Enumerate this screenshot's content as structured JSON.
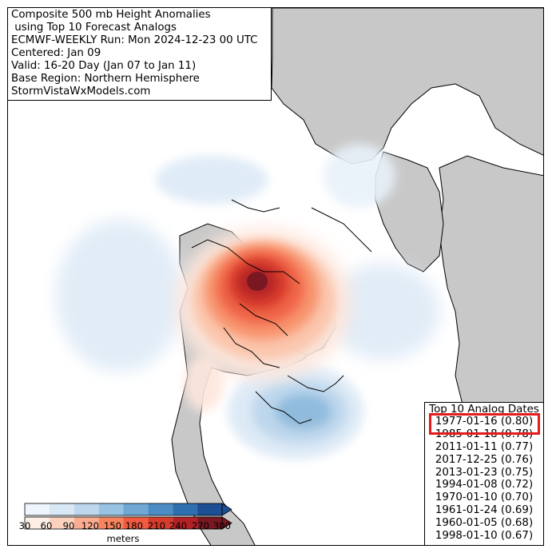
{
  "title_lines": [
    "Composite 500 mb Height Anomalies",
    " using Top 10 Forecast Analogs",
    "ECMWF-WEEKLY Run: Mon 2024-12-23 00 UTC",
    "Centered: Jan 09",
    "Valid: 16-20 Day (Jan 07 to Jan 11)",
    "Base Region: Northern Hemisphere",
    "StormVistaWxModels.com"
  ],
  "analogs": {
    "title": "Top 10 Analog Dates",
    "items": [
      "1977-01-16 (0.80)",
      "1985-01-18 (0.78)",
      "2011-01-11 (0.77)",
      "2017-12-25 (0.76)",
      "2013-01-23 (0.75)",
      "1994-01-08 (0.72)",
      "1970-01-10 (0.70)",
      "1961-01-24 (0.69)",
      "1960-01-05 (0.68)",
      "1998-01-10 (0.67)"
    ],
    "highlighted_index": 0,
    "highlight_color": "#e41a1c"
  },
  "colorbar": {
    "ticks": [
      "30",
      "60",
      "90",
      "120",
      "150",
      "180",
      "210",
      "240",
      "270",
      "300"
    ],
    "units": "meters",
    "blue_colors": [
      "#eef5fc",
      "#d9e8f6",
      "#bed7ed",
      "#99c3e2",
      "#6fa8d5",
      "#4b8cc4",
      "#2e6fb0",
      "#1c4f93"
    ],
    "red_colors": [
      "#fdeee6",
      "#fcd2bf",
      "#fbac90",
      "#f8835f",
      "#ef5a40",
      "#d63b2c",
      "#b22126",
      "#7a1822"
    ]
  },
  "colors": {
    "land": "#c8c8c8",
    "ocean": "#ffffff",
    "coast": "#000000"
  }
}
